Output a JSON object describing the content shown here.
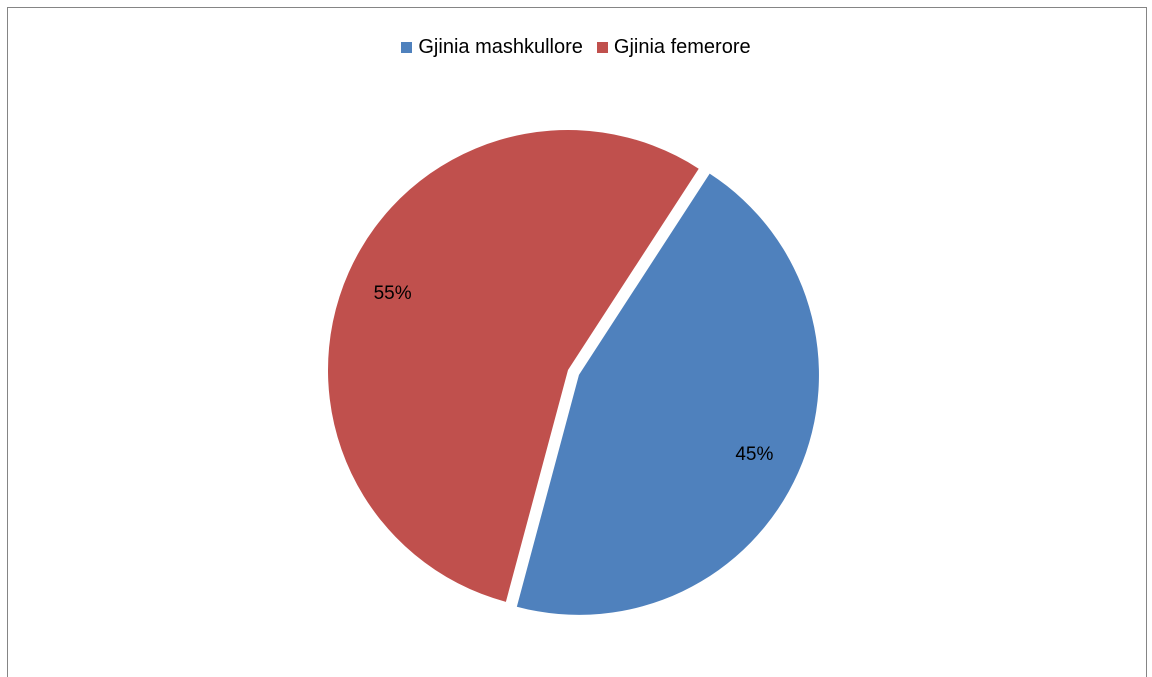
{
  "chart_data": {
    "type": "pie",
    "title": "",
    "legend_position": "top",
    "categories": [
      "Gjinia mashkullore",
      "Gjinia femerore"
    ],
    "values": [
      45,
      55
    ],
    "labels": [
      "45%",
      "55%"
    ],
    "colors": [
      "#4F81BD",
      "#C0504D"
    ],
    "exploded": [
      true,
      false
    ]
  }
}
